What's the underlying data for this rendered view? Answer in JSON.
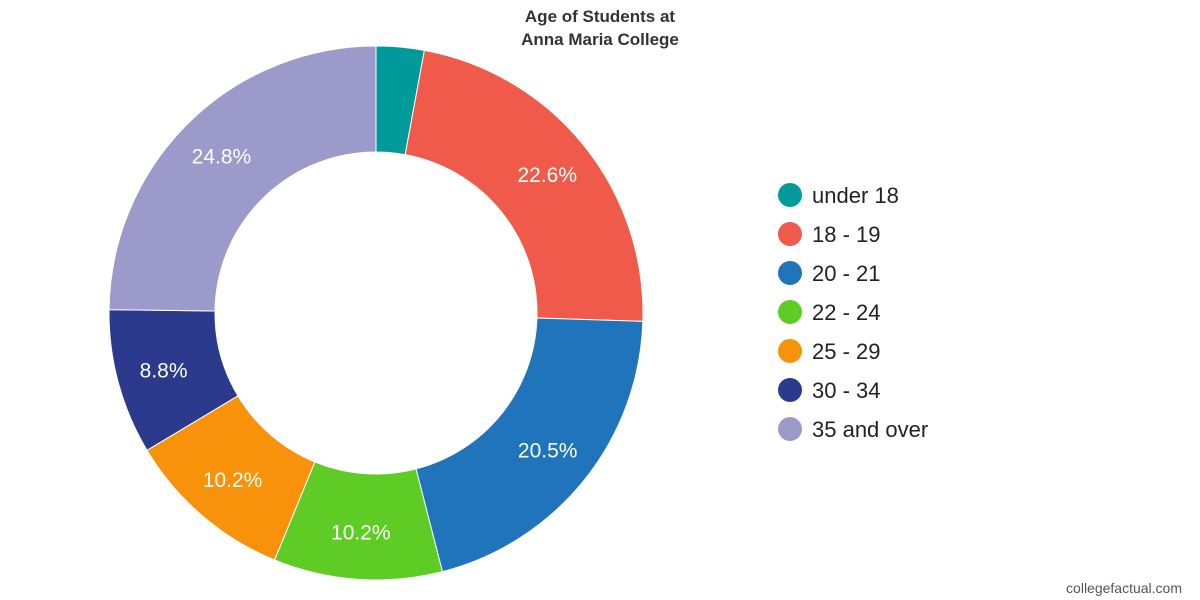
{
  "chart_data": {
    "type": "pie",
    "title_lines": [
      "Age of Students at",
      "Anna Maria College"
    ],
    "donut": true,
    "legend_position": "right",
    "categories": [
      "under 18",
      "18 - 19",
      "20 - 21",
      "22 - 24",
      "25 - 29",
      "30 - 34",
      "35 and over"
    ],
    "values": [
      2.9,
      22.6,
      20.5,
      10.2,
      10.2,
      8.8,
      24.8
    ],
    "data_labels": [
      "",
      "22.6%",
      "20.5%",
      "10.2%",
      "10.2%",
      "8.8%",
      "24.8%"
    ],
    "colors": [
      "#009a9a",
      "#f05a4a",
      "#1f74bb",
      "#5fcc25",
      "#f7920a",
      "#2c3a8e",
      "#9b9aca"
    ]
  },
  "watermark": "collegefactual.com"
}
